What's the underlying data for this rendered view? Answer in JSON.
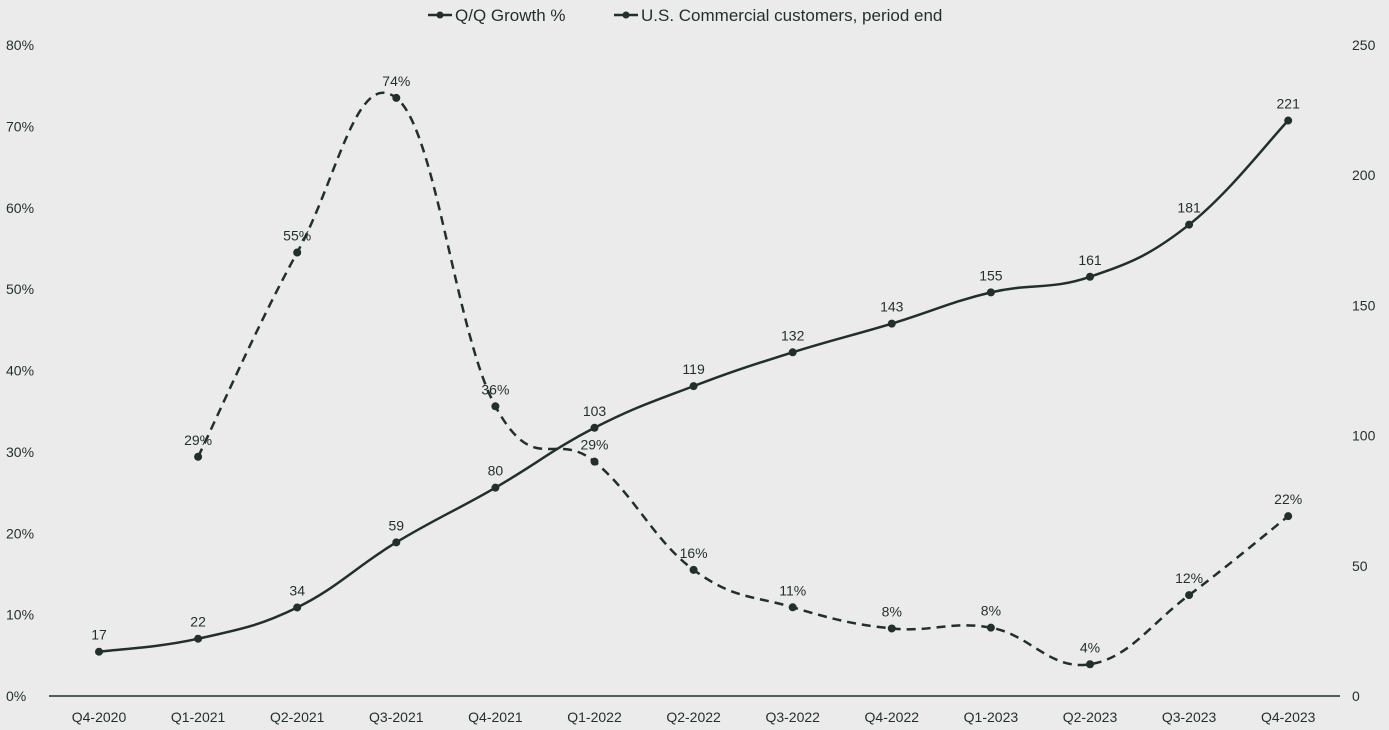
{
  "chart_data": {
    "type": "line",
    "title": "",
    "xlabel": "",
    "ylabel": "",
    "ylabel_right": "",
    "categories": [
      "Q4-2020",
      "Q1-2021",
      "Q2-2021",
      "Q3-2021",
      "Q4-2021",
      "Q1-2022",
      "Q2-2022",
      "Q3-2022",
      "Q4-2022",
      "Q1-2023",
      "Q2-2023",
      "Q3-2023",
      "Q4-2023"
    ],
    "series": [
      {
        "name": "Q/Q Growth %",
        "axis": "left",
        "style": "dashed",
        "values": [
          null,
          29.4,
          54.5,
          73.5,
          35.6,
          28.8,
          15.5,
          10.9,
          8.3,
          8.4,
          3.9,
          12.4,
          22.1
        ],
        "labels": [
          "",
          "29%",
          "55%",
          "74%",
          "36%",
          "29%",
          "16%",
          "11%",
          "8%",
          "8%",
          "4%",
          "12%",
          "22%"
        ]
      },
      {
        "name": "U.S. Commercial customers, period end",
        "axis": "right",
        "style": "solid",
        "values": [
          17,
          22,
          34,
          59,
          80,
          103,
          119,
          132,
          143,
          155,
          161,
          181,
          221
        ],
        "labels": [
          "17",
          "22",
          "34",
          "59",
          "80",
          "103",
          "119",
          "132",
          "143",
          "155",
          "161",
          "181",
          "221"
        ]
      }
    ],
    "left_axis": {
      "ylim": [
        0,
        80
      ],
      "ticks": [
        0,
        10,
        20,
        30,
        40,
        50,
        60,
        70,
        80
      ],
      "tick_labels": [
        "0%",
        "10%",
        "20%",
        "30%",
        "40%",
        "50%",
        "60%",
        "70%",
        "80%"
      ]
    },
    "right_axis": {
      "ylim": [
        0,
        250
      ],
      "ticks": [
        0,
        50,
        100,
        150,
        200,
        250
      ],
      "tick_labels": [
        "0",
        "50",
        "100",
        "150",
        "200",
        "250"
      ]
    },
    "legend": {
      "position": "top-center"
    },
    "grid": false,
    "colors": {
      "line": "#1f302d",
      "background": "#ebebeb",
      "text": "#1f302d"
    }
  }
}
